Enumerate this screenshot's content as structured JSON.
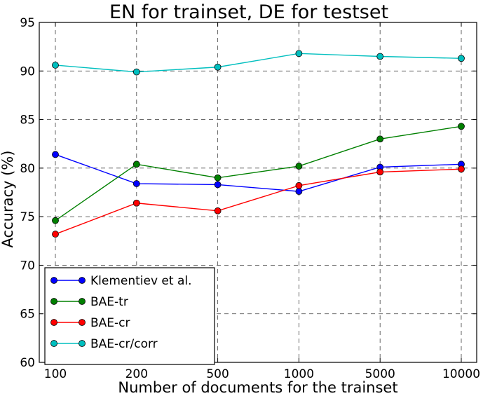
{
  "chart_data": {
    "type": "line",
    "title": "EN for trainset, DE for testset",
    "xlabel": "Number of documents for the trainset",
    "ylabel": "Accuracy (%)",
    "categories": [
      "100",
      "200",
      "500",
      "1000",
      "5000",
      "10000"
    ],
    "ylim": [
      60,
      95
    ],
    "yticks": [
      "60",
      "65",
      "70",
      "75",
      "80",
      "85",
      "90",
      "95"
    ],
    "grid": true,
    "legend_position": "lower-left",
    "series": [
      {
        "name": "Klementiev et al.",
        "color": "#0000ff",
        "values": [
          81.4,
          78.4,
          78.3,
          77.6,
          80.1,
          80.4
        ]
      },
      {
        "name": "BAE-tr",
        "color": "#008000",
        "values": [
          74.6,
          80.4,
          79.0,
          80.2,
          83.0,
          84.3
        ]
      },
      {
        "name": "BAE-cr",
        "color": "#ff0000",
        "values": [
          73.2,
          76.4,
          75.6,
          78.2,
          79.6,
          79.9
        ]
      },
      {
        "name": "BAE-cr/corr",
        "color": "#00bfbf",
        "values": [
          90.6,
          89.9,
          90.4,
          91.8,
          91.5,
          91.3
        ]
      }
    ]
  }
}
